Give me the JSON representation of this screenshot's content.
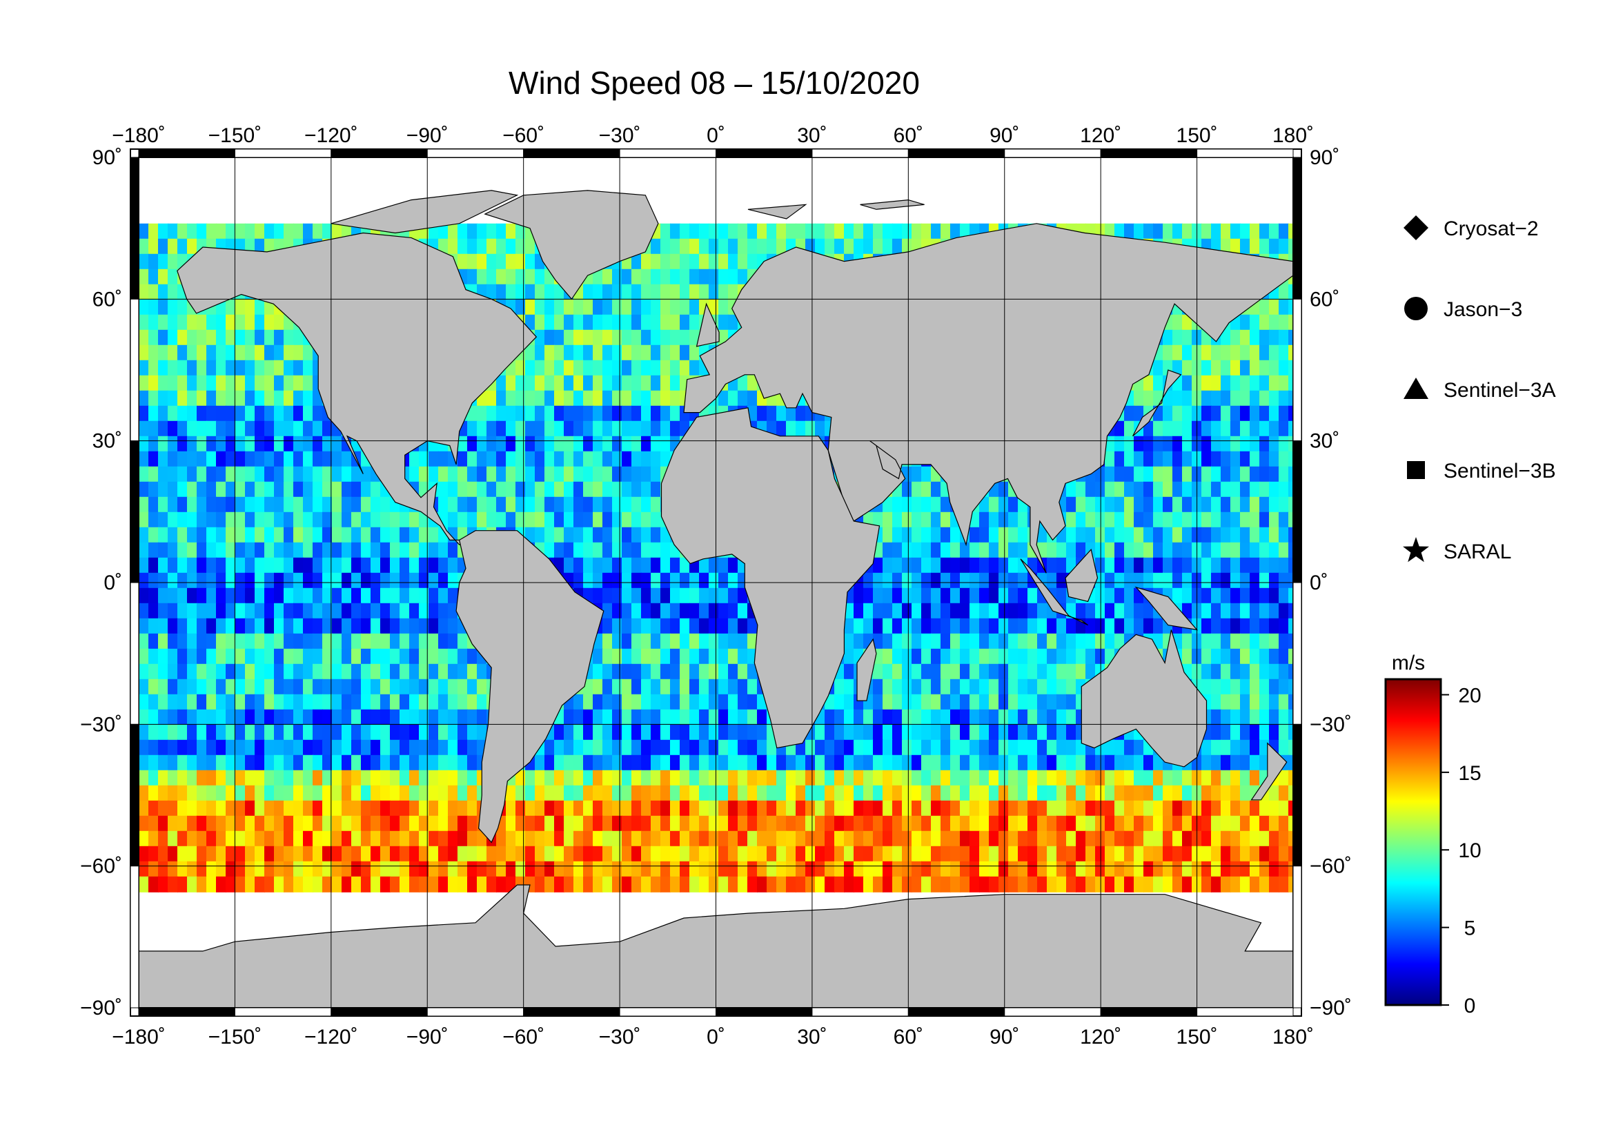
{
  "title": "Wind Speed 08 – 15/10/2020",
  "longitude_ticks": [
    {
      "value": -180,
      "label": "−180˚"
    },
    {
      "value": -150,
      "label": "−150˚"
    },
    {
      "value": -120,
      "label": "−120˚"
    },
    {
      "value": -90,
      "label": "−90˚"
    },
    {
      "value": -60,
      "label": "−60˚"
    },
    {
      "value": -30,
      "label": "−30˚"
    },
    {
      "value": 0,
      "label": "0˚"
    },
    {
      "value": 30,
      "label": "30˚"
    },
    {
      "value": 60,
      "label": "60˚"
    },
    {
      "value": 90,
      "label": "90˚"
    },
    {
      "value": 120,
      "label": "120˚"
    },
    {
      "value": 150,
      "label": "150˚"
    },
    {
      "value": 180,
      "label": "180˚"
    }
  ],
  "latitude_ticks": [
    {
      "value": 90,
      "label": "90˚"
    },
    {
      "value": 60,
      "label": "60˚"
    },
    {
      "value": 30,
      "label": "30˚"
    },
    {
      "value": 0,
      "label": "0˚"
    },
    {
      "value": -30,
      "label": "−30˚"
    },
    {
      "value": -60,
      "label": "−60˚"
    },
    {
      "value": -90,
      "label": "−90˚"
    }
  ],
  "legend": [
    {
      "marker": "diamond",
      "label": "Cryosat−2"
    },
    {
      "marker": "circle",
      "label": "Jason−3"
    },
    {
      "marker": "triangle",
      "label": "Sentinel−3A"
    },
    {
      "marker": "square",
      "label": "Sentinel−3B"
    },
    {
      "marker": "star",
      "label": "SARAL"
    }
  ],
  "colorbar": {
    "unit": "m/s",
    "min": 0,
    "max": 21,
    "ticks": [
      0,
      5,
      10,
      15,
      20
    ],
    "colors": [
      "#00007f",
      "#0000ff",
      "#007fff",
      "#00ffff",
      "#7fff7f",
      "#ffff00",
      "#ff7f00",
      "#ff0000",
      "#7f0000"
    ]
  },
  "map_colors": {
    "land": "#bebebe",
    "ice": "#ffffff",
    "frame": "#000000"
  }
}
